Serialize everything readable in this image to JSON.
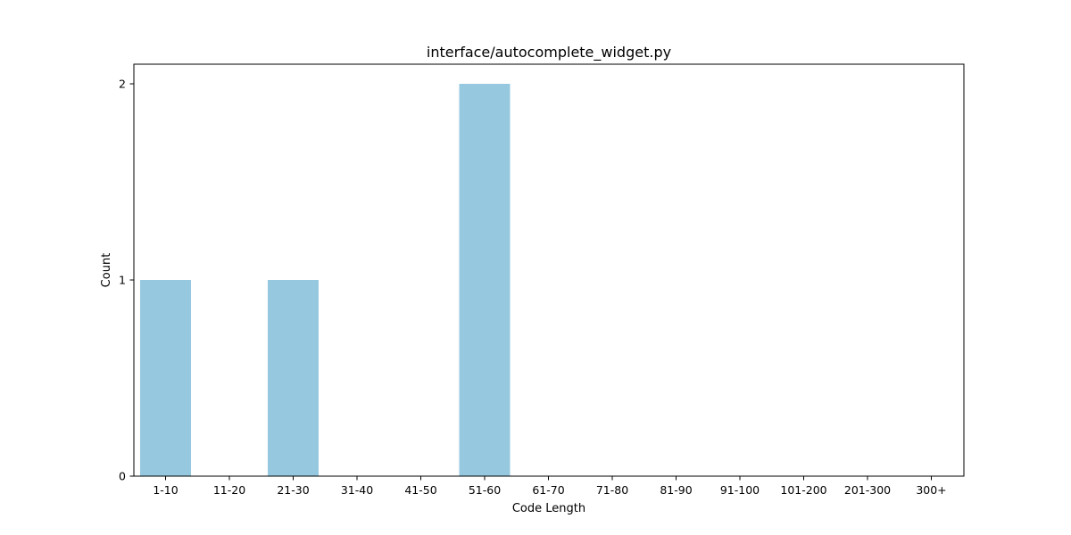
{
  "chart_data": {
    "type": "bar",
    "title": "interface/autocomplete_widget.py",
    "xlabel": "Code Length",
    "ylabel": "Count",
    "categories": [
      "1-10",
      "11-20",
      "21-30",
      "31-40",
      "41-50",
      "51-60",
      "61-70",
      "71-80",
      "81-90",
      "91-100",
      "101-200",
      "201-300",
      "300+"
    ],
    "values": [
      1,
      0,
      1,
      0,
      0,
      2,
      0,
      0,
      0,
      0,
      0,
      0,
      0
    ],
    "yticks": [
      "0",
      "1",
      "2"
    ],
    "ylim": [
      0,
      2.1
    ],
    "grid": false,
    "legend": "none",
    "bar_color": "#96c9df"
  }
}
